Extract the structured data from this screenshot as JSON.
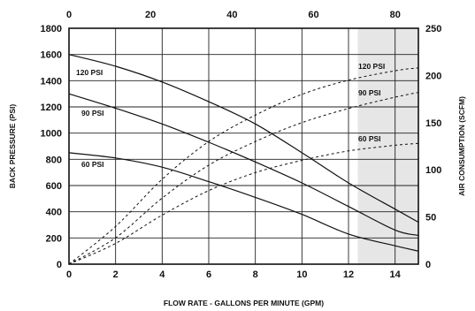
{
  "chart_data": {
    "type": "line",
    "xlabel": "FLOW RATE - GALLONS PER MINUTE (GPM)",
    "ylabel": "BACK PRESSURE (PSI)",
    "y2label": "AIR CONSUMPTION (SCFM)",
    "xlim": [
      0,
      15
    ],
    "ylim": [
      0,
      1800
    ],
    "x2lim": [
      0,
      85.7
    ],
    "y2lim": [
      0,
      250
    ],
    "xticks": [
      "0",
      "2",
      "4",
      "6",
      "8",
      "10",
      "12",
      "14"
    ],
    "yticks": [
      "0",
      "200",
      "400",
      "600",
      "800",
      "1000",
      "1200",
      "1400",
      "1600",
      "1800"
    ],
    "x2ticks": [
      "0",
      "20",
      "40",
      "60",
      "80"
    ],
    "y2ticks": [
      "0",
      "50",
      "100",
      "150",
      "200",
      "250"
    ],
    "grid": true,
    "shaded_region": {
      "x_from": 12.4,
      "x_to": 15
    },
    "pressure_series": [
      {
        "name": "120 PSI",
        "axis": "left",
        "x": [
          0,
          2,
          4,
          6,
          8,
          10,
          12,
          14,
          15
        ],
        "y": [
          1600,
          1510,
          1390,
          1240,
          1070,
          850,
          620,
          420,
          320
        ]
      },
      {
        "name": "90 PSI",
        "axis": "left",
        "x": [
          0,
          2,
          4,
          6,
          8,
          10,
          12,
          14,
          15
        ],
        "y": [
          1300,
          1190,
          1070,
          930,
          780,
          620,
          440,
          260,
          220
        ]
      },
      {
        "name": "60 PSI",
        "axis": "left",
        "x": [
          0,
          2,
          4,
          6,
          8,
          10,
          12,
          14,
          15
        ],
        "y": [
          850,
          810,
          740,
          630,
          510,
          380,
          230,
          140,
          100
        ]
      }
    ],
    "air_series": [
      {
        "name": "120 PSI",
        "axis": "right",
        "x": [
          0,
          2,
          4,
          6,
          8,
          10,
          12,
          14,
          15
        ],
        "y": [
          0,
          40,
          90,
          130,
          158,
          180,
          195,
          205,
          208
        ]
      },
      {
        "name": "90 PSI",
        "axis": "right",
        "x": [
          0,
          2,
          4,
          6,
          8,
          10,
          12,
          14,
          15
        ],
        "y": [
          0,
          28,
          70,
          105,
          130,
          150,
          165,
          177,
          182
        ]
      },
      {
        "name": "60 PSI",
        "axis": "right",
        "x": [
          0,
          2,
          4,
          6,
          8,
          10,
          12,
          14,
          15
        ],
        "y": [
          0,
          22,
          52,
          78,
          97,
          110,
          120,
          126,
          128
        ]
      }
    ]
  }
}
